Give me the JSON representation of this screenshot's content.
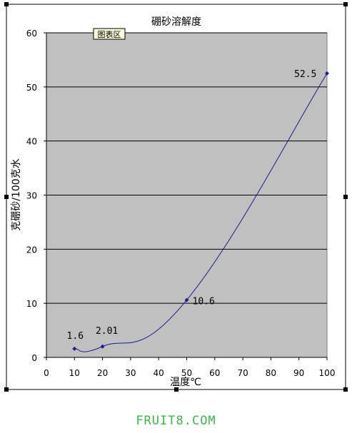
{
  "chart_data": {
    "type": "line",
    "title": "硼砂溶解度",
    "xlabel": "温度℃",
    "ylabel": "克硼砂/100克水",
    "x": [
      10,
      20,
      50,
      100
    ],
    "y": [
      1.6,
      2.01,
      10.6,
      52.5
    ],
    "data_labels": [
      "1.6",
      "2.01",
      "10.6",
      "52.5"
    ],
    "xlim": [
      0,
      100
    ],
    "ylim": [
      0,
      60
    ],
    "x_ticks": [
      "0",
      "10",
      "20",
      "30",
      "40",
      "50",
      "60",
      "70",
      "80",
      "90",
      "100"
    ],
    "y_ticks": [
      "0",
      "10",
      "20",
      "30",
      "40",
      "50",
      "60"
    ],
    "grid": "horizontal",
    "plot_area_tag": "图表区",
    "colors": {
      "plot_bg": "#c0c0c0",
      "line": "#1c1c8c",
      "grid": "#000000"
    }
  },
  "watermark": "FRUIT8.COM"
}
